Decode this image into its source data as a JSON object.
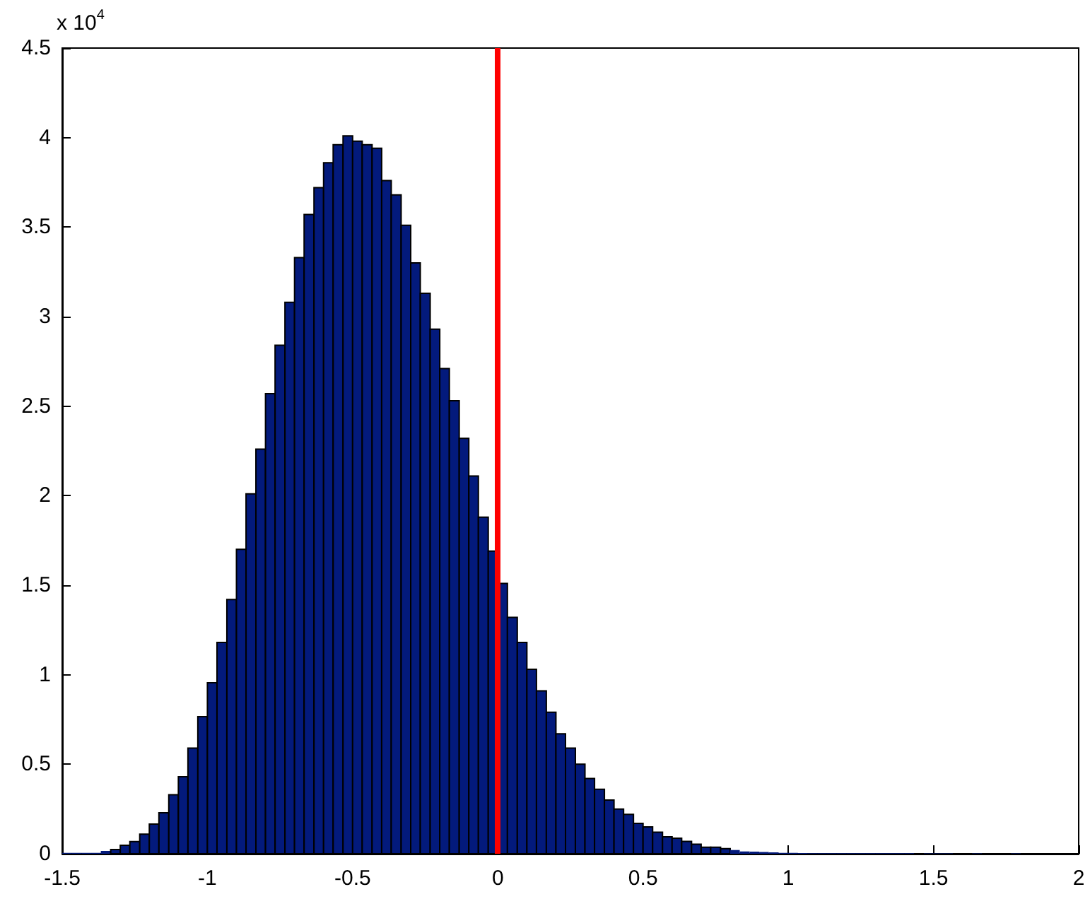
{
  "chart_data": {
    "type": "histogram",
    "bins": [
      -1.5,
      -1.467,
      -1.433,
      -1.4,
      -1.367,
      -1.333,
      -1.3,
      -1.267,
      -1.233,
      -1.2,
      -1.167,
      -1.133,
      -1.1,
      -1.067,
      -1.033,
      -1,
      -0.967,
      -0.933,
      -0.9,
      -0.867,
      -0.833,
      -0.8,
      -0.767,
      -0.733,
      -0.7,
      -0.667,
      -0.633,
      -0.6,
      -0.567,
      -0.533,
      -0.5,
      -0.467,
      -0.433,
      -0.4,
      -0.367,
      -0.333,
      -0.3,
      -0.267,
      -0.233,
      -0.2,
      -0.167,
      -0.133,
      -0.1,
      -0.067,
      -0.033,
      0,
      0.033,
      0.067,
      0.1,
      0.133,
      0.167,
      0.2,
      0.233,
      0.267,
      0.3,
      0.333,
      0.367,
      0.4,
      0.433,
      0.467,
      0.5,
      0.533,
      0.567,
      0.6,
      0.633,
      0.667,
      0.7,
      0.733,
      0.767,
      0.8,
      0.833,
      0.867,
      0.9,
      0.933,
      0.967,
      1,
      1.033,
      1.067,
      1.1,
      1.133,
      1.167,
      1.2,
      1.233,
      1.267,
      1.3,
      1.333,
      1.367,
      1.4,
      1.433,
      1.467,
      1.5,
      1.533,
      1.567,
      1.6,
      1.633,
      1.667,
      1.7,
      1.733,
      1.767,
      1.8,
      1.833
    ],
    "values": [
      0.005,
      0.005,
      0.005,
      0.005,
      0.016,
      0.024,
      0.047,
      0.068,
      0.11,
      0.166,
      0.229,
      0.33,
      0.43,
      0.59,
      0.766,
      0.955,
      1.18,
      1.42,
      1.7,
      2.01,
      2.26,
      2.57,
      2.84,
      3.08,
      3.33,
      3.57,
      3.72,
      3.86,
      3.96,
      4.01,
      3.98,
      3.96,
      3.94,
      3.76,
      3.68,
      3.51,
      3.3,
      3.13,
      2.93,
      2.71,
      2.53,
      2.32,
      2.11,
      1.88,
      1.69,
      1.51,
      1.32,
      1.18,
      1.03,
      0.91,
      0.79,
      0.67,
      0.59,
      0.5,
      0.42,
      0.36,
      0.3,
      0.25,
      0.22,
      0.17,
      0.15,
      0.12,
      0.095,
      0.087,
      0.069,
      0.053,
      0.037,
      0.037,
      0.029,
      0.021,
      0.013,
      0.012,
      0.01,
      0.008,
      0.005,
      0.005,
      0.004,
      0.003,
      0.003,
      0.003,
      0.003,
      0.003,
      0.003,
      0.003,
      0.003,
      0.003,
      0.003,
      0.003,
      0,
      0.002,
      0.002,
      0.002,
      0,
      0,
      0.002,
      0,
      0,
      0,
      0.002,
      0
    ],
    "color": "#031a7c",
    "xlim": [
      -1.5,
      2
    ],
    "xticks": [
      -1.5,
      -1,
      -0.5,
      0,
      0.5,
      1,
      1.5,
      2
    ],
    "ylim": [
      0,
      4.5
    ],
    "yticks": [
      0,
      0.5,
      1,
      1.5,
      2,
      2.5,
      3,
      3.5,
      4,
      4.5
    ],
    "annotations": [
      "x 10$^{4}$"
    ],
    "ref_lines": [
      {
        "axis": "x",
        "value": 0,
        "color": "#ff0000"
      }
    ],
    "grid": false
  }
}
